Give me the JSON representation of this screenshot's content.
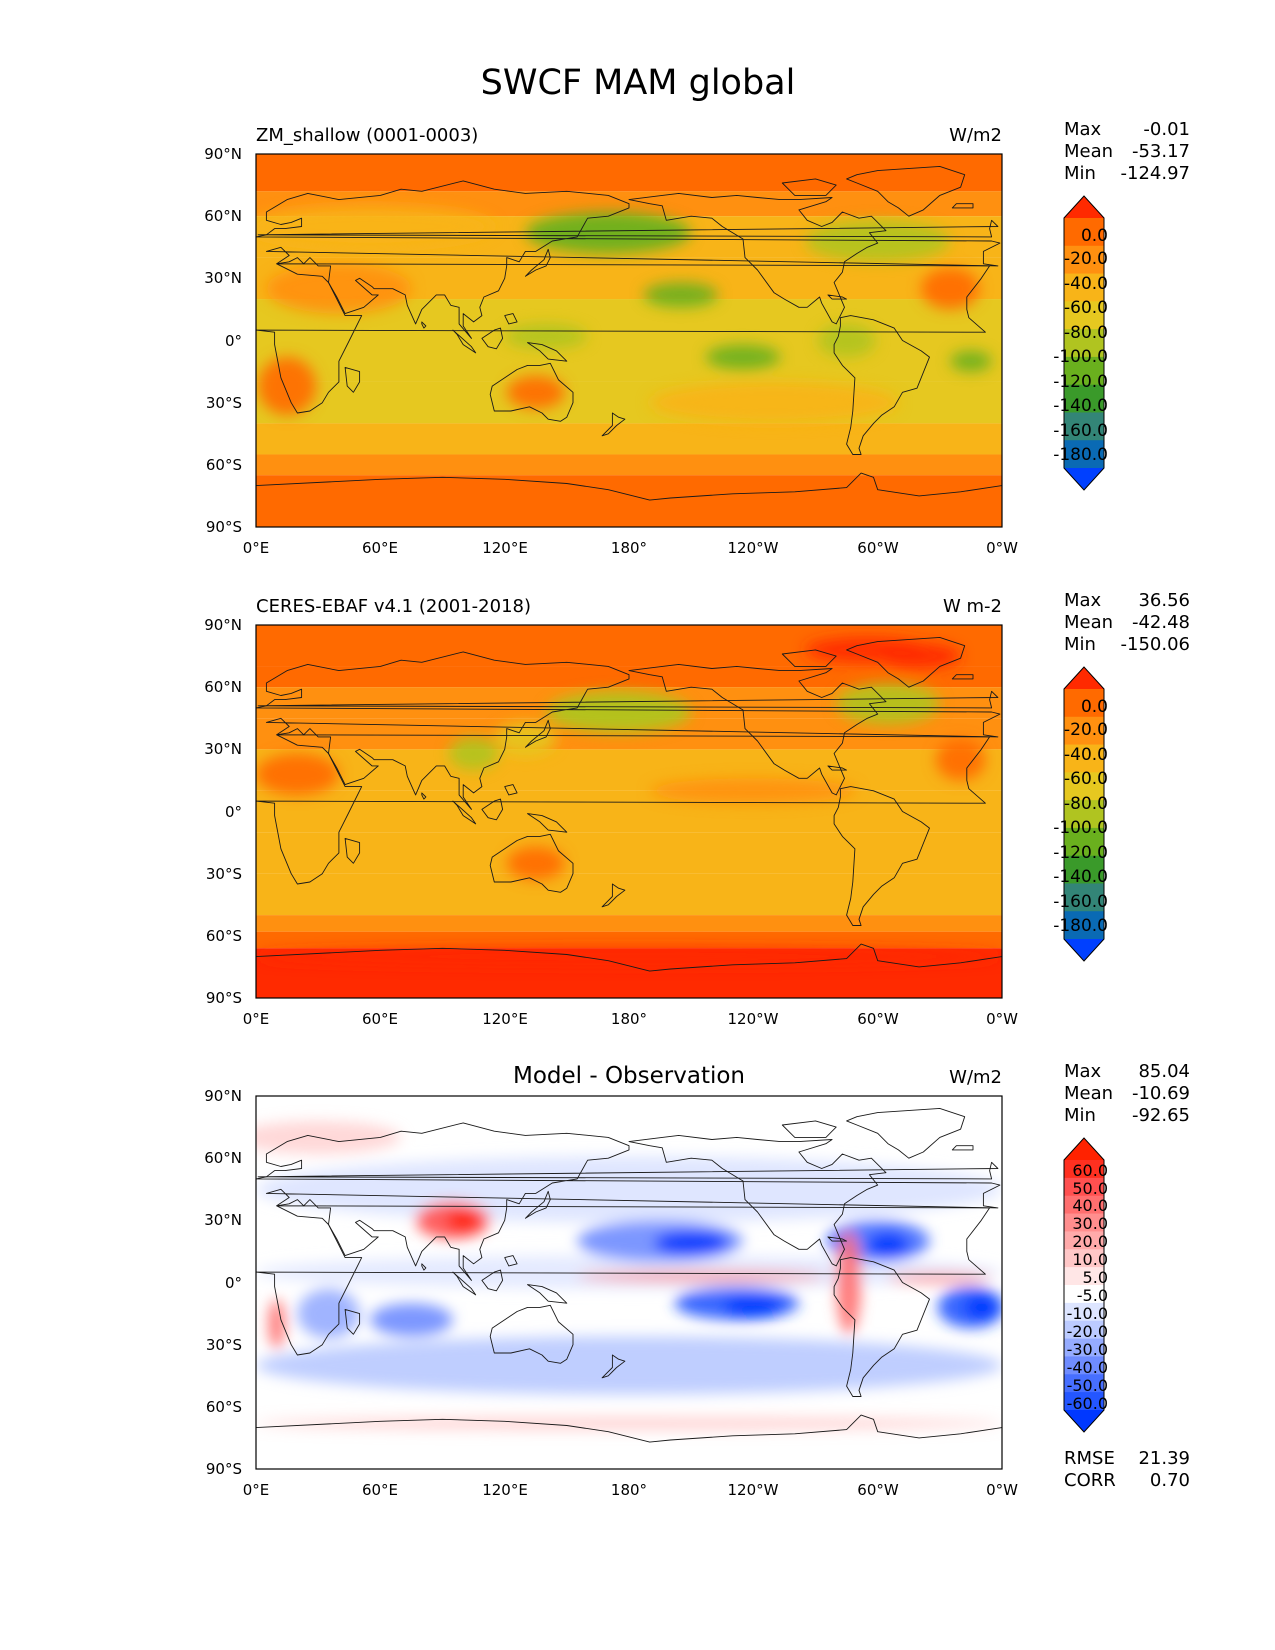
{
  "figure_title": "SWCF MAM global",
  "colors": {
    "field_scale": [
      "#0040ff",
      "#0a6ab4",
      "#338577",
      "#3a9a2a",
      "#6ab01e",
      "#b0c420",
      "#e6c820",
      "#f8b418",
      "#ff9010",
      "#ff6a00",
      "#ff2a00"
    ],
    "diff_scale": [
      "#0038ff",
      "#2456ff",
      "#476fff",
      "#6f8cff",
      "#96acff",
      "#bccbff",
      "#dde5ff",
      "#ffffff",
      "#ffe6e6",
      "#ffc7c7",
      "#ffaaaa",
      "#ff8e8e",
      "#ff6f6f",
      "#ff5050",
      "#ff3020",
      "#ff2200"
    ]
  },
  "chart_data": [
    {
      "type": "heatmap",
      "title": "ZM_shallow (0001-0003)",
      "units": "W/m2",
      "x_tick_labels": [
        "0°E",
        "60°E",
        "120°E",
        "180°",
        "120°W",
        "60°W",
        "0°W"
      ],
      "y_tick_labels": [
        "90°N",
        "60°N",
        "30°N",
        "0°",
        "30°S",
        "60°S",
        "90°S"
      ],
      "xlim": [
        0,
        360
      ],
      "ylim": [
        -90,
        90
      ],
      "stats": [
        {
          "label": "Max",
          "value": "-0.01"
        },
        {
          "label": "Mean",
          "value": "-53.17"
        },
        {
          "label": "Min",
          "value": "-124.97"
        }
      ],
      "colorbar_levels": [
        "0.0",
        "-20.0",
        "-40.0",
        "-60.0",
        "-80.0",
        "-100.0",
        "-120.0",
        "-140.0",
        "-160.0",
        "-180.0"
      ]
    },
    {
      "type": "heatmap",
      "title": "CERES-EBAF v4.1 (2001-2018)",
      "units": "W m-2",
      "x_tick_labels": [
        "0°E",
        "60°E",
        "120°E",
        "180°",
        "120°W",
        "60°W",
        "0°W"
      ],
      "y_tick_labels": [
        "90°N",
        "60°N",
        "30°N",
        "0°",
        "30°S",
        "60°S",
        "90°S"
      ],
      "xlim": [
        0,
        360
      ],
      "ylim": [
        -90,
        90
      ],
      "stats": [
        {
          "label": "Max",
          "value": "36.56"
        },
        {
          "label": "Mean",
          "value": "-42.48"
        },
        {
          "label": "Min",
          "value": "-150.06"
        }
      ],
      "colorbar_levels": [
        "0.0",
        "-20.0",
        "-40.0",
        "-60.0",
        "-80.0",
        "-100.0",
        "-120.0",
        "-140.0",
        "-160.0",
        "-180.0"
      ]
    },
    {
      "type": "heatmap",
      "title": "Model - Observation",
      "units": "W/m2",
      "x_tick_labels": [
        "0°E",
        "60°E",
        "120°E",
        "180°",
        "120°W",
        "60°W",
        "0°W"
      ],
      "y_tick_labels": [
        "90°N",
        "60°N",
        "30°N",
        "0°",
        "30°S",
        "60°S",
        "90°S"
      ],
      "xlim": [
        0,
        360
      ],
      "ylim": [
        -90,
        90
      ],
      "stats": [
        {
          "label": "Max",
          "value": "85.04"
        },
        {
          "label": "Mean",
          "value": "-10.69"
        },
        {
          "label": "Min",
          "value": "-92.65"
        }
      ],
      "colorbar_levels": [
        "60.0",
        "50.0",
        "40.0",
        "30.0",
        "20.0",
        "10.0",
        "5.0",
        "-5.0",
        "-10.0",
        "-20.0",
        "-30.0",
        "-40.0",
        "-50.0",
        "-60.0"
      ],
      "metrics": [
        {
          "label": "RMSE",
          "value": "21.39"
        },
        {
          "label": "CORR",
          "value": "0.70"
        }
      ]
    }
  ]
}
